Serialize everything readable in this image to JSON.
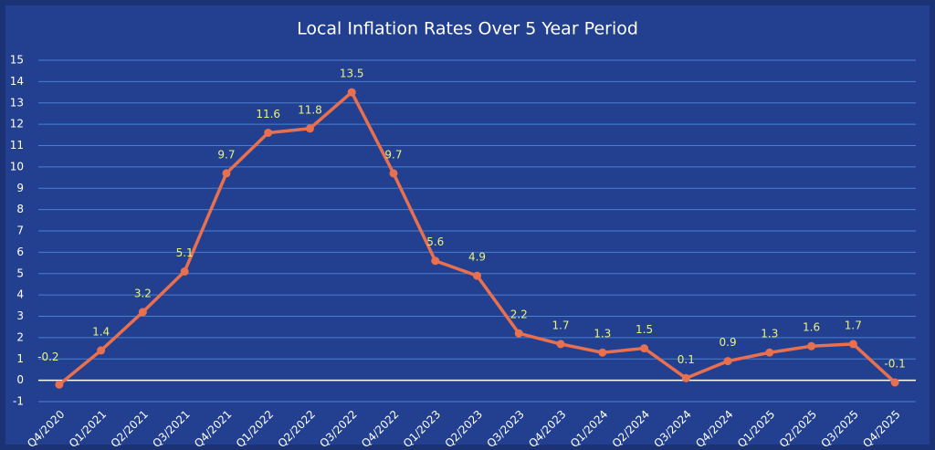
{
  "chart_data": {
    "type": "line",
    "title": "Local Inflation Rates Over 5 Year Period",
    "categories": [
      "Q4/2020",
      "Q1/2021",
      "Q2/2021",
      "Q3/2021",
      "Q4/2021",
      "Q1/2022",
      "Q2/2022",
      "Q3/2022",
      "Q4/2022",
      "Q1/2023",
      "Q2/2023",
      "Q3/2023",
      "Q4/2023",
      "Q1/2024",
      "Q2/2024",
      "Q3/2024",
      "Q4/2024",
      "Q1/2025",
      "Q2/2025",
      "Q3/2025",
      "Q4/2025"
    ],
    "values": [
      -0.2,
      1.4,
      3.2,
      5.1,
      9.7,
      11.6,
      11.8,
      13.5,
      9.7,
      5.6,
      4.9,
      2.2,
      1.7,
      1.3,
      1.5,
      0.1,
      0.9,
      1.3,
      1.6,
      1.7,
      -0.1
    ],
    "color": "#e8704f",
    "ylim": [
      -1,
      15
    ],
    "yticks": [
      -1,
      0,
      1,
      2,
      3,
      4,
      5,
      6,
      7,
      8,
      9,
      10,
      11,
      12,
      13,
      14,
      15
    ],
    "grid": true
  }
}
